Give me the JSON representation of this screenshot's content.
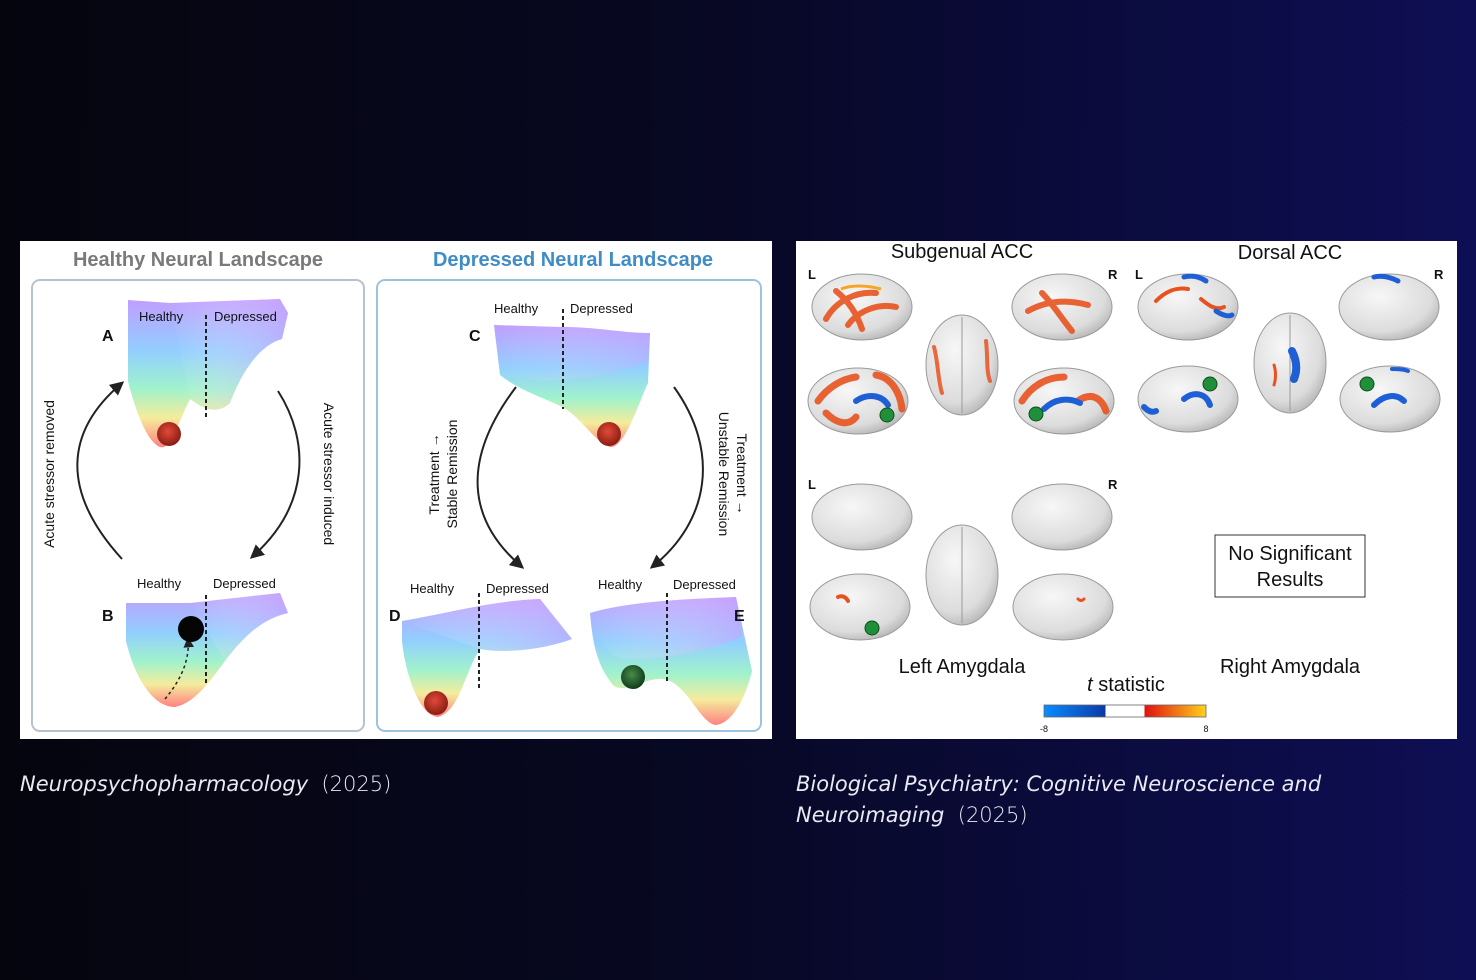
{
  "left_figure": {
    "healthy_title": "Healthy Neural Landscape",
    "depressed_title": "Depressed Neural Landscape",
    "colors": {
      "healthy_title": "#7a7a7a",
      "depressed_title": "#3f8dc6",
      "panel_border": "#b5c3cf",
      "depressed_border": "#9cc3dd"
    },
    "panels": {
      "A": {
        "letter": "A",
        "healthy": "Healthy",
        "depressed": "Depressed"
      },
      "B": {
        "letter": "B",
        "healthy": "Healthy",
        "depressed": "Depressed"
      },
      "C": {
        "letter": "C",
        "healthy": "Healthy",
        "depressed": "Depressed"
      },
      "D": {
        "letter": "D",
        "healthy": "Healthy",
        "depressed": "Depressed"
      },
      "E": {
        "letter": "E",
        "healthy": "Healthy",
        "depressed": "Depressed"
      }
    },
    "arrows": {
      "removed": "Acute stressor removed",
      "induced": "Acute stressor induced",
      "stable_1": "Treatment →",
      "stable_2": "Stable Remission",
      "unstable_1": "Treatment →",
      "unstable_2": "Unstable Remission"
    }
  },
  "right_figure": {
    "subgenual": "Subgenual ACC",
    "dorsal": "Dorsal ACC",
    "left_amygdala": "Left Amygdala",
    "right_amygdala": "Right Amygdala",
    "no_results_1": "No Significant",
    "no_results_2": "Results",
    "hemisphere_left": "L",
    "hemisphere_right": "R",
    "colorbar_title_t": "t",
    "colorbar_title_rest": "statistic",
    "colorbar_min": "-8",
    "colorbar_max": "8",
    "colors": {
      "positive": "#e8521f",
      "negative": "#1f5fd6",
      "seed": "#1f8f3a",
      "brain": "#e6e6e6"
    }
  },
  "captions": {
    "left_journal": "Neuropsychopharmacology",
    "left_year": "(2025)",
    "right_journal": "Biological Psychiatry: Cognitive Neuroscience and Neuroimaging",
    "right_year": "(2025)"
  }
}
